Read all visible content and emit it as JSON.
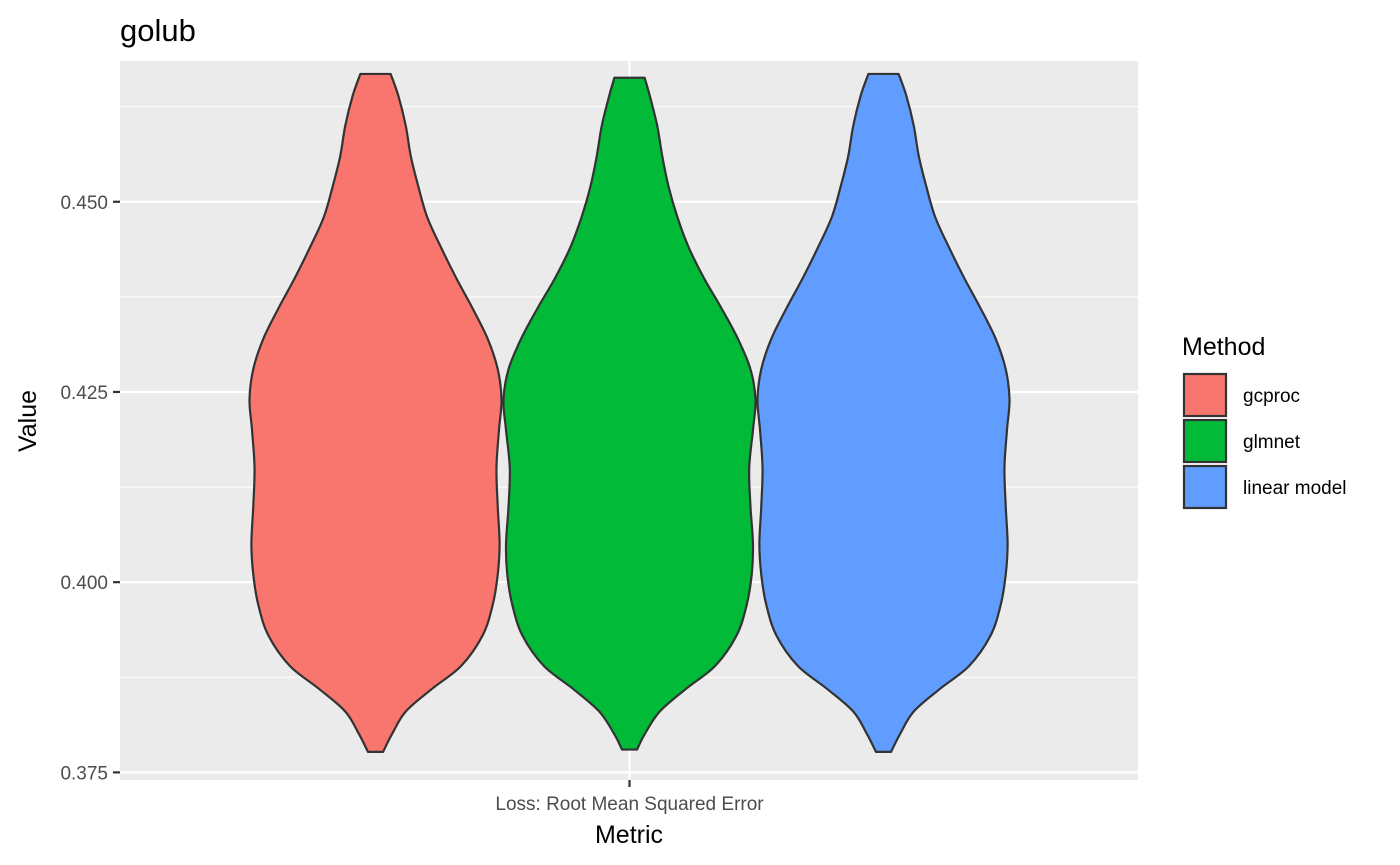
{
  "chart_data": {
    "type": "violin",
    "title": "golub",
    "xlabel": "Metric",
    "ylabel": "Value",
    "categories": [
      "Loss: Root Mean Squared Error"
    ],
    "ylim": [
      0.374,
      0.4685
    ],
    "y_ticks": [
      0.375,
      0.4,
      0.425,
      0.45
    ],
    "y_tick_labels": [
      "0.375",
      "0.400",
      "0.425",
      "0.450"
    ],
    "grid": true,
    "legend": {
      "title": "Method",
      "position": "right"
    },
    "series": [
      {
        "name": "gcproc",
        "color": "#F8766D",
        "min": 0.3777,
        "max": 0.4668,
        "profile": [
          [
            0.3777,
            0.06
          ],
          [
            0.38,
            0.13
          ],
          [
            0.383,
            0.24
          ],
          [
            0.386,
            0.45
          ],
          [
            0.389,
            0.68
          ],
          [
            0.393,
            0.85
          ],
          [
            0.397,
            0.93
          ],
          [
            0.401,
            0.97
          ],
          [
            0.405,
            0.985
          ],
          [
            0.41,
            0.97
          ],
          [
            0.415,
            0.96
          ],
          [
            0.42,
            0.98
          ],
          [
            0.424,
            1.0
          ],
          [
            0.428,
            0.97
          ],
          [
            0.432,
            0.89
          ],
          [
            0.436,
            0.77
          ],
          [
            0.44,
            0.64
          ],
          [
            0.444,
            0.52
          ],
          [
            0.448,
            0.41
          ],
          [
            0.452,
            0.34
          ],
          [
            0.456,
            0.28
          ],
          [
            0.46,
            0.24
          ],
          [
            0.464,
            0.18
          ],
          [
            0.4668,
            0.12
          ]
        ]
      },
      {
        "name": "glmnet",
        "color": "#00BA38",
        "min": 0.378,
        "max": 0.4663,
        "profile": [
          [
            0.378,
            0.06
          ],
          [
            0.38,
            0.12
          ],
          [
            0.383,
            0.24
          ],
          [
            0.386,
            0.45
          ],
          [
            0.389,
            0.68
          ],
          [
            0.393,
            0.85
          ],
          [
            0.397,
            0.93
          ],
          [
            0.401,
            0.97
          ],
          [
            0.405,
            0.98
          ],
          [
            0.41,
            0.96
          ],
          [
            0.415,
            0.95
          ],
          [
            0.42,
            0.98
          ],
          [
            0.424,
            1.0
          ],
          [
            0.428,
            0.96
          ],
          [
            0.432,
            0.86
          ],
          [
            0.436,
            0.73
          ],
          [
            0.44,
            0.59
          ],
          [
            0.444,
            0.47
          ],
          [
            0.448,
            0.38
          ],
          [
            0.452,
            0.31
          ],
          [
            0.456,
            0.26
          ],
          [
            0.46,
            0.22
          ],
          [
            0.464,
            0.16
          ],
          [
            0.4663,
            0.12
          ]
        ]
      },
      {
        "name": "linear model",
        "color": "#619CFF",
        "min": 0.3777,
        "max": 0.4668,
        "profile": [
          [
            0.3777,
            0.06
          ],
          [
            0.38,
            0.13
          ],
          [
            0.383,
            0.24
          ],
          [
            0.386,
            0.45
          ],
          [
            0.389,
            0.68
          ],
          [
            0.393,
            0.85
          ],
          [
            0.397,
            0.93
          ],
          [
            0.401,
            0.97
          ],
          [
            0.405,
            0.985
          ],
          [
            0.41,
            0.97
          ],
          [
            0.415,
            0.96
          ],
          [
            0.42,
            0.98
          ],
          [
            0.424,
            1.0
          ],
          [
            0.428,
            0.97
          ],
          [
            0.432,
            0.89
          ],
          [
            0.436,
            0.77
          ],
          [
            0.44,
            0.64
          ],
          [
            0.444,
            0.52
          ],
          [
            0.448,
            0.41
          ],
          [
            0.452,
            0.34
          ],
          [
            0.456,
            0.28
          ],
          [
            0.46,
            0.24
          ],
          [
            0.464,
            0.18
          ],
          [
            0.4668,
            0.12
          ]
        ]
      }
    ]
  }
}
